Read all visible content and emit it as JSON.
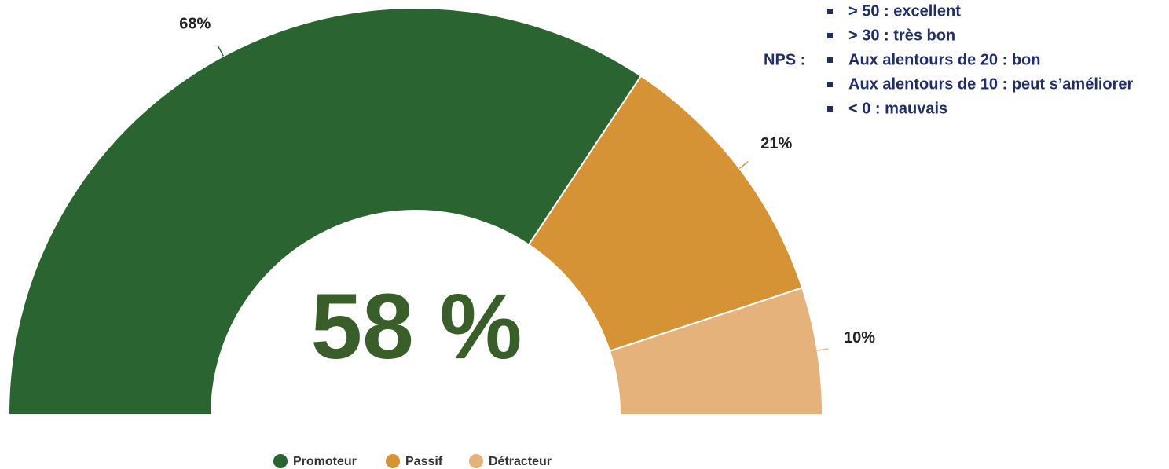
{
  "chart_data": {
    "type": "half-donut",
    "categories": [
      "Promoteur",
      "Passif",
      "Détracteur"
    ],
    "values": [
      68,
      21,
      10
    ],
    "value_labels": [
      "68%",
      "21%",
      "10%"
    ],
    "colors": [
      "#2a6430",
      "#d69336",
      "#e4b27a"
    ],
    "center_label": "58 %",
    "legend": "bottom"
  },
  "nps_note": {
    "title": "NPS :",
    "items": [
      "> 50 : excellent",
      "> 30 : très bon",
      "Aux alentours de 20 : bon",
      "Aux alentours de 10 : peut s’améliorer",
      "< 0 : mauvais"
    ]
  }
}
